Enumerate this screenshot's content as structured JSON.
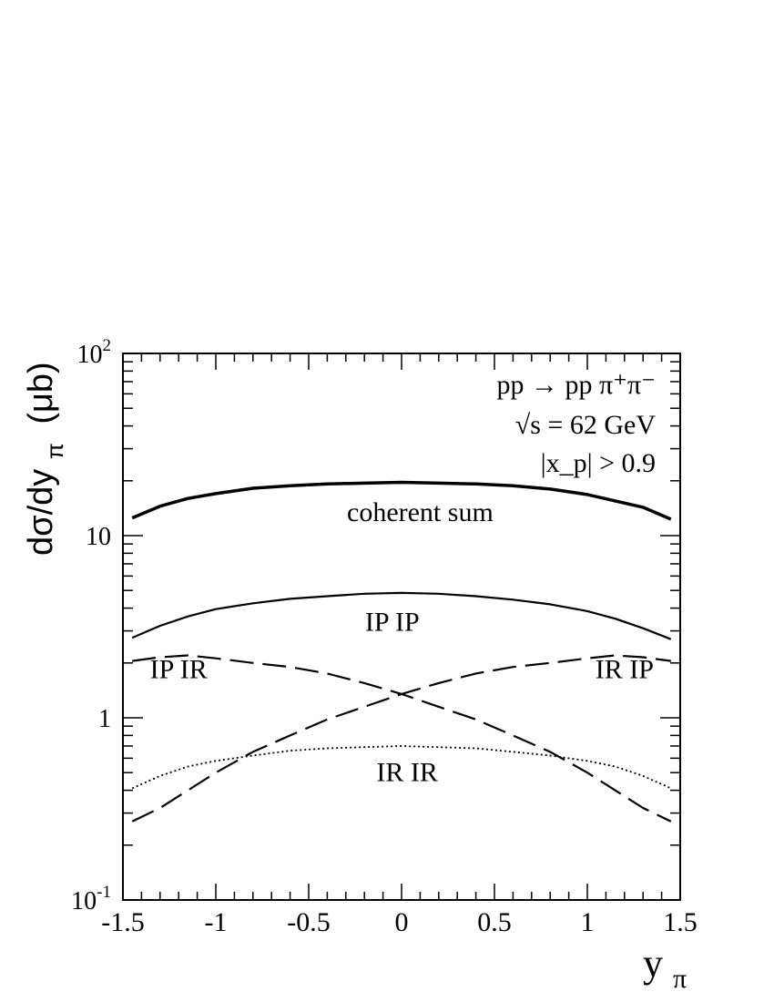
{
  "chart_data": {
    "type": "line",
    "title": "",
    "xlabel": "y",
    "xlabel_sub": "π",
    "ylabel": "dσ/dy",
    "ylabel_sub": "π",
    "ylabel_unit": "(μb)",
    "xlim": [
      -1.5,
      1.5
    ],
    "ylim": [
      0.1,
      100
    ],
    "yscale": "log",
    "grid": false,
    "x_ticks": [
      -1.5,
      -1,
      -0.5,
      0,
      0.5,
      1,
      1.5
    ],
    "x_tick_labels": [
      "-1.5",
      "-1",
      "-0.5",
      "0",
      "0.5",
      "1",
      "1.5"
    ],
    "y_ticks": [
      0.1,
      1,
      10,
      100
    ],
    "y_tick_labels": [
      {
        "base": "10",
        "exp": "-1"
      },
      {
        "base": "1",
        "exp": ""
      },
      {
        "base": "10",
        "exp": ""
      },
      {
        "base": "10",
        "exp": "2"
      }
    ],
    "annotations": {
      "process_line1": "pp → pp π⁺π⁻",
      "process_line2": "√s = 62 GeV",
      "process_line3": "|x_p| > 0.9"
    },
    "series": [
      {
        "name": "coherent sum",
        "style": "solid-thick",
        "label_pos": {
          "x": 0.1,
          "y": 12.0
        },
        "x": [
          -1.45,
          -1.3,
          -1.15,
          -1.0,
          -0.8,
          -0.6,
          -0.4,
          -0.2,
          0.0,
          0.2,
          0.4,
          0.6,
          0.8,
          1.0,
          1.15,
          1.3,
          1.45
        ],
        "y": [
          12.5,
          14.5,
          16.0,
          17.0,
          18.2,
          18.8,
          19.2,
          19.4,
          19.6,
          19.4,
          19.2,
          18.8,
          18.0,
          16.8,
          15.5,
          14.3,
          12.3
        ]
      },
      {
        "name": "IP IP",
        "style": "solid",
        "label_pos": {
          "x": -0.05,
          "y": 3.0
        },
        "x": [
          -1.45,
          -1.3,
          -1.15,
          -1.0,
          -0.8,
          -0.6,
          -0.4,
          -0.2,
          0.0,
          0.2,
          0.4,
          0.6,
          0.8,
          1.0,
          1.15,
          1.3,
          1.45
        ],
        "y": [
          2.75,
          3.2,
          3.6,
          3.95,
          4.25,
          4.5,
          4.65,
          4.8,
          4.85,
          4.8,
          4.65,
          4.45,
          4.2,
          3.85,
          3.5,
          3.1,
          2.7
        ]
      },
      {
        "name": "IP IR",
        "style": "long-dash",
        "label_pos": {
          "x": -1.2,
          "y": 1.65
        },
        "x": [
          -1.45,
          -1.3,
          -1.15,
          -1.0,
          -0.8,
          -0.6,
          -0.4,
          -0.2,
          0.0,
          0.2,
          0.4,
          0.6,
          0.8,
          1.0,
          1.15,
          1.3,
          1.45
        ],
        "y": [
          2.05,
          2.15,
          2.2,
          2.12,
          2.0,
          1.9,
          1.75,
          1.55,
          1.35,
          1.15,
          0.98,
          0.8,
          0.65,
          0.5,
          0.4,
          0.32,
          0.27
        ]
      },
      {
        "name": "IR IP",
        "style": "long-dash",
        "label_pos": {
          "x": 1.2,
          "y": 1.65
        },
        "x": [
          -1.45,
          -1.3,
          -1.15,
          -1.0,
          -0.8,
          -0.6,
          -0.4,
          -0.2,
          0.0,
          0.2,
          0.4,
          0.6,
          0.8,
          1.0,
          1.15,
          1.3,
          1.45
        ],
        "y": [
          0.27,
          0.32,
          0.4,
          0.5,
          0.65,
          0.8,
          0.98,
          1.15,
          1.35,
          1.55,
          1.75,
          1.9,
          2.0,
          2.12,
          2.2,
          2.15,
          2.05
        ]
      },
      {
        "name": "IR IR",
        "style": "dotted",
        "label_pos": {
          "x": 0.03,
          "y": 0.45
        },
        "x": [
          -1.45,
          -1.3,
          -1.15,
          -1.0,
          -0.8,
          -0.6,
          -0.4,
          -0.2,
          0.0,
          0.2,
          0.4,
          0.6,
          0.8,
          1.0,
          1.15,
          1.3,
          1.45
        ],
        "y": [
          0.41,
          0.48,
          0.54,
          0.58,
          0.62,
          0.66,
          0.68,
          0.69,
          0.7,
          0.69,
          0.68,
          0.65,
          0.62,
          0.58,
          0.54,
          0.48,
          0.41
        ]
      }
    ]
  }
}
